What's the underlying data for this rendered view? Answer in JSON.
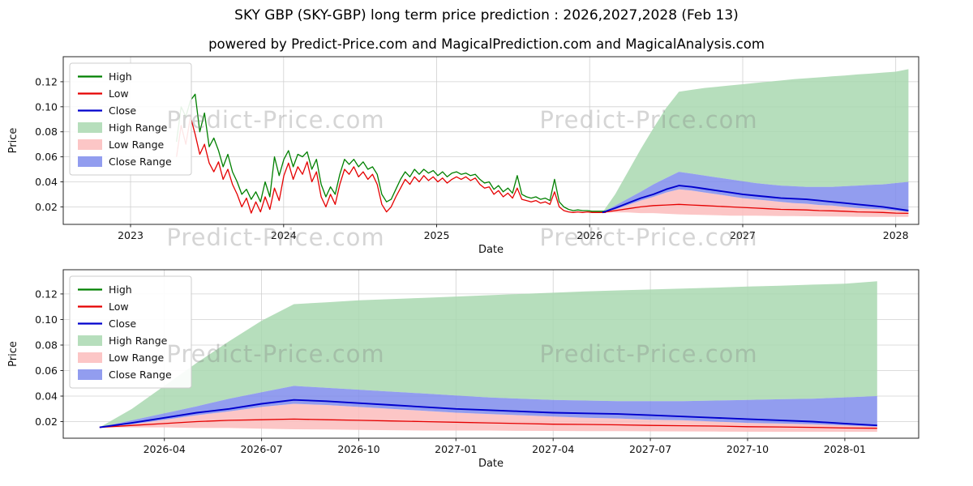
{
  "title": "SKY GBP (SKY-GBP) long term price prediction : 2026,2027,2028 (Feb 13)",
  "subtitle": "powered by Predict-Price.com and MagicalPrediction.com and MagicalAnalysis.com",
  "watermark": "Predict-Price.com",
  "colors": {
    "high": "#008000",
    "low": "#e50000",
    "close": "#0000cd",
    "high_range": "#a9d8b0",
    "low_range": "#fbbcbc",
    "close_range": "#7f8cec",
    "grid": "#d0d0d0",
    "spine": "#262626",
    "text": "#111111"
  },
  "chart_data": {
    "type": "line",
    "xlabel": "Date",
    "ylabel": "Price",
    "legend": [
      {
        "label": "High",
        "type": "line",
        "color_key": "high"
      },
      {
        "label": "Low",
        "type": "line",
        "color_key": "low"
      },
      {
        "label": "Close",
        "type": "line",
        "color_key": "close"
      },
      {
        "label": "High Range",
        "type": "patch",
        "color_key": "high_range"
      },
      {
        "label": "Low Range",
        "type": "patch",
        "color_key": "low_range"
      },
      {
        "label": "Close Range",
        "type": "patch",
        "color_key": "close_range"
      }
    ],
    "history": {
      "t0": 2023.3,
      "dt": 0.0305,
      "low": [
        0.06,
        0.085,
        0.07,
        0.092,
        0.078,
        0.062,
        0.07,
        0.055,
        0.048,
        0.056,
        0.042,
        0.05,
        0.038,
        0.03,
        0.02,
        0.027,
        0.015,
        0.024,
        0.016,
        0.028,
        0.018,
        0.035,
        0.025,
        0.045,
        0.055,
        0.042,
        0.052,
        0.046,
        0.056,
        0.04,
        0.048,
        0.028,
        0.02,
        0.03,
        0.022,
        0.038,
        0.05,
        0.046,
        0.052,
        0.044,
        0.048,
        0.042,
        0.046,
        0.038,
        0.022,
        0.016,
        0.02,
        0.028,
        0.035,
        0.042,
        0.038,
        0.044,
        0.04,
        0.045,
        0.041,
        0.044,
        0.04,
        0.043,
        0.039,
        0.042,
        0.044,
        0.042,
        0.044,
        0.041,
        0.043,
        0.038,
        0.035,
        0.036,
        0.03,
        0.033,
        0.028,
        0.031,
        0.027,
        0.035,
        0.026,
        0.025,
        0.024,
        0.025,
        0.023,
        0.024,
        0.022,
        0.032,
        0.02,
        0.017,
        0.016,
        0.0155,
        0.016,
        0.0155,
        0.016,
        0.0155,
        0.0155,
        0.0155,
        0.0155
      ],
      "high": [
        0.072,
        0.1,
        0.092,
        0.105,
        0.11,
        0.08,
        0.095,
        0.068,
        0.075,
        0.065,
        0.052,
        0.062,
        0.048,
        0.04,
        0.03,
        0.034,
        0.026,
        0.032,
        0.024,
        0.04,
        0.028,
        0.06,
        0.045,
        0.058,
        0.065,
        0.052,
        0.062,
        0.06,
        0.064,
        0.05,
        0.058,
        0.038,
        0.028,
        0.036,
        0.03,
        0.046,
        0.058,
        0.054,
        0.058,
        0.052,
        0.056,
        0.05,
        0.052,
        0.046,
        0.03,
        0.024,
        0.026,
        0.034,
        0.042,
        0.048,
        0.044,
        0.05,
        0.046,
        0.05,
        0.047,
        0.049,
        0.045,
        0.048,
        0.044,
        0.047,
        0.048,
        0.046,
        0.047,
        0.045,
        0.046,
        0.042,
        0.039,
        0.04,
        0.034,
        0.037,
        0.032,
        0.035,
        0.031,
        0.045,
        0.03,
        0.028,
        0.027,
        0.028,
        0.026,
        0.027,
        0.025,
        0.042,
        0.024,
        0.02,
        0.018,
        0.017,
        0.0175,
        0.017,
        0.017,
        0.0165,
        0.0165,
        0.0165,
        0.0165
      ]
    },
    "prediction": {
      "dates": [
        "2026-02",
        "2026-03",
        "2026-04",
        "2026-05",
        "2026-06",
        "2026-07",
        "2026-08",
        "2026-09",
        "2026-10",
        "2026-11",
        "2026-12",
        "2027-01",
        "2027-02",
        "2027-03",
        "2027-04",
        "2027-05",
        "2027-06",
        "2027-07",
        "2027-08",
        "2027-09",
        "2027-10",
        "2027-11",
        "2027-12",
        "2028-01",
        "2028-02"
      ],
      "close": [
        0.0155,
        0.019,
        0.023,
        0.027,
        0.03,
        0.034,
        0.037,
        0.036,
        0.0345,
        0.033,
        0.0315,
        0.03,
        0.029,
        0.028,
        0.027,
        0.0265,
        0.026,
        0.025,
        0.024,
        0.023,
        0.022,
        0.021,
        0.02,
        0.0185,
        0.017
      ],
      "low": [
        0.0155,
        0.017,
        0.0185,
        0.02,
        0.021,
        0.0215,
        0.022,
        0.0215,
        0.021,
        0.0205,
        0.02,
        0.0195,
        0.019,
        0.0185,
        0.018,
        0.0178,
        0.0175,
        0.017,
        0.0168,
        0.0165,
        0.016,
        0.0158,
        0.0155,
        0.015,
        0.0148
      ],
      "high_range_upper": [
        0.0155,
        0.03,
        0.048,
        0.066,
        0.083,
        0.099,
        0.112,
        0.1135,
        0.115,
        0.116,
        0.117,
        0.118,
        0.119,
        0.12,
        0.121,
        0.122,
        0.1228,
        0.1235,
        0.1243,
        0.125,
        0.1258,
        0.1265,
        0.1273,
        0.128,
        0.13
      ],
      "close_range_upper": [
        0.0155,
        0.021,
        0.0265,
        0.032,
        0.038,
        0.043,
        0.048,
        0.0465,
        0.045,
        0.0435,
        0.042,
        0.0405,
        0.039,
        0.038,
        0.037,
        0.0365,
        0.036,
        0.036,
        0.036,
        0.0365,
        0.037,
        0.0375,
        0.038,
        0.039,
        0.04
      ],
      "close_range_lower": [
        0.0155,
        0.018,
        0.0215,
        0.025,
        0.028,
        0.0315,
        0.034,
        0.033,
        0.0315,
        0.03,
        0.0285,
        0.027,
        0.026,
        0.025,
        0.024,
        0.023,
        0.0225,
        0.0215,
        0.021,
        0.02,
        0.019,
        0.0185,
        0.018,
        0.017,
        0.016
      ],
      "low_range_lower": [
        0.0155,
        0.0155,
        0.0155,
        0.015,
        0.015,
        0.0145,
        0.014,
        0.0138,
        0.0135,
        0.0133,
        0.013,
        0.013,
        0.013,
        0.0128,
        0.0127,
        0.0126,
        0.0125,
        0.0124,
        0.0123,
        0.0122,
        0.0121,
        0.012,
        0.012,
        0.012,
        0.012
      ]
    },
    "panels": [
      {
        "name": "full-history-and-forecast",
        "show_history": true,
        "xlim": [
          2022.56,
          2028.15
        ],
        "ylim": [
          0.006,
          0.14
        ],
        "yticks": [
          0.02,
          0.04,
          0.06,
          0.08,
          0.1,
          0.12
        ],
        "xticks": [
          {
            "v": 2023,
            "label": "2023"
          },
          {
            "v": 2024,
            "label": "2024"
          },
          {
            "v": 2025,
            "label": "2025"
          },
          {
            "v": 2026,
            "label": "2026"
          },
          {
            "v": 2027,
            "label": "2027"
          },
          {
            "v": 2028,
            "label": "2028"
          }
        ]
      },
      {
        "name": "forecast-zoom",
        "show_history": false,
        "xlim": [
          2025.99,
          2028.19
        ],
        "ylim": [
          0.007,
          0.139
        ],
        "yticks": [
          0.02,
          0.04,
          0.06,
          0.08,
          0.1,
          0.12
        ],
        "xticks": [
          {
            "v": 2026.25,
            "label": "2026-04"
          },
          {
            "v": 2026.5,
            "label": "2026-07"
          },
          {
            "v": 2026.75,
            "label": "2026-10"
          },
          {
            "v": 2027.0,
            "label": "2027-01"
          },
          {
            "v": 2027.25,
            "label": "2027-04"
          },
          {
            "v": 2027.5,
            "label": "2027-07"
          },
          {
            "v": 2027.75,
            "label": "2027-10"
          },
          {
            "v": 2028.0,
            "label": "2028-01"
          }
        ]
      }
    ]
  }
}
